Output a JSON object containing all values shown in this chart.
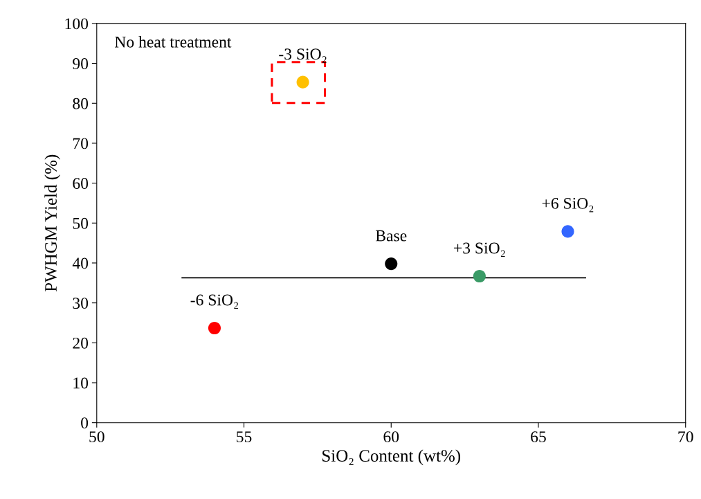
{
  "chart_data": {
    "type": "scatter",
    "xlabel": "SiO₂ Content (wt%)",
    "ylabel": "PWHGM Yield (%)",
    "xlim": [
      50,
      70
    ],
    "xticks": [
      50,
      55,
      60,
      65,
      70
    ],
    "ylim": [
      0,
      100
    ],
    "yticks": [
      0,
      10,
      20,
      30,
      40,
      50,
      60,
      70,
      80,
      90,
      100
    ],
    "grid": false,
    "legend": false,
    "marker": "circle",
    "series": [
      {
        "x": [
          54,
          57,
          60,
          63,
          66
        ],
        "values": [
          23.7,
          85.3,
          39.8,
          36.7,
          47.9
        ],
        "colors": [
          "#ff0000",
          "#ffc000",
          "#000000",
          "#3a9a66",
          "#3366ff"
        ]
      },
      {
        "type": "line",
        "x": [
          52.9,
          66.6
        ],
        "values": [
          36.3,
          36.3
        ],
        "color": "#000000",
        "marker": "none"
      }
    ],
    "annotations": [
      "No heat treatment",
      {
        "text": "-6 SiO₂",
        "x": 54,
        "y": 23.7
      },
      {
        "text": "-3 SiO₂",
        "x": 57,
        "y": 85.3
      },
      {
        "text": "Base",
        "x": 60,
        "y": 39.8
      },
      {
        "text": "+3 SiO₂",
        "x": 63,
        "y": 36.7
      },
      {
        "text": "+6 SiO₂",
        "x": 66,
        "y": 47.9
      }
    ]
  }
}
